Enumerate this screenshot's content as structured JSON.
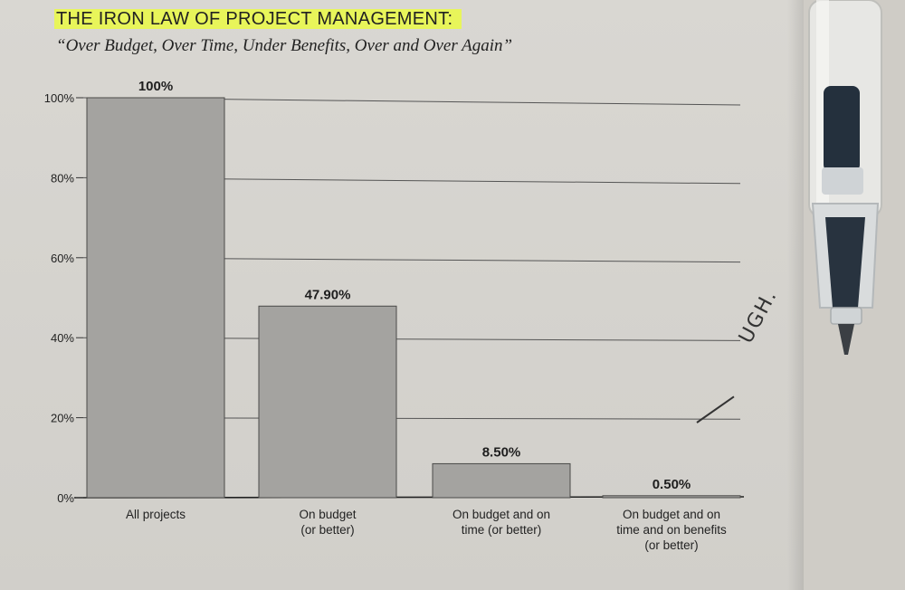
{
  "chart_data": {
    "type": "bar",
    "title": "THE IRON LAW OF PROJECT MANAGEMENT:",
    "subtitle": "“Over Budget, Over Time, Under Benefits, Over and Over Again”",
    "categories": [
      [
        "All projects"
      ],
      [
        "On budget",
        "(or better)"
      ],
      [
        "On budget and on",
        "time (or better)"
      ],
      [
        "On budget and on",
        "time and on benefits",
        "(or better)"
      ]
    ],
    "values": [
      100,
      47.9,
      8.5,
      0.5
    ],
    "value_labels": [
      "100%",
      "47.90%",
      "8.50%",
      "0.50%"
    ],
    "ylim": [
      0,
      100
    ],
    "yticks": [
      0,
      20,
      40,
      60,
      80,
      100
    ],
    "ytick_labels": [
      "0%",
      "20%",
      "40%",
      "60%",
      "80%",
      "100%"
    ],
    "xlabel": "",
    "ylabel": "",
    "grid": true,
    "bar_color": "#a4a3a0"
  },
  "annotation": {
    "handwritten": "UGH."
  }
}
